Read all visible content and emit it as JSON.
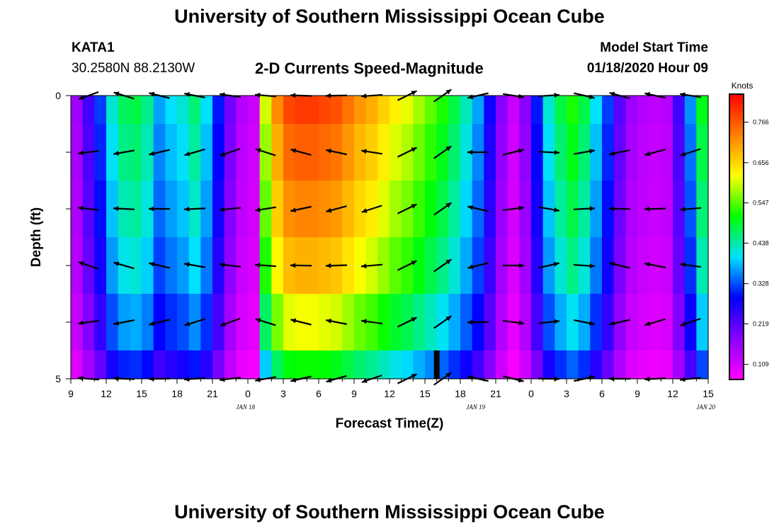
{
  "header": {
    "title": "University of Southern Mississippi Ocean Cube",
    "station": "KATA1",
    "coords": "30.2580N 88.2130W",
    "subtitle": "2-D Currents Speed-Magnitude",
    "model_start_label": "Model Start Time",
    "model_start_value": "01/18/2020 Hour 09"
  },
  "footer": {
    "title": "University of Southern Mississippi Ocean Cube"
  },
  "chart_data": {
    "type": "heatmap",
    "title": "2-D Currents Speed-Magnitude",
    "xlabel": "Forecast Time(Z)",
    "ylabel": "Depth (ft)",
    "x_ticks": [
      "9",
      "12",
      "15",
      "18",
      "21",
      "0",
      "3",
      "6",
      "9",
      "12",
      "15",
      "18",
      "21",
      "0",
      "3",
      "6",
      "9",
      "12",
      "15"
    ],
    "date_labels": [
      {
        "label": "JAN 18",
        "hour": 16
      },
      {
        "label": "JAN 19",
        "hour": 35.5
      },
      {
        "label": "JAN 20",
        "hour": 55
      }
    ],
    "x_range_hours": [
      0,
      54
    ],
    "y_ticks": [
      "0",
      "5"
    ],
    "y_range_ft": [
      0,
      5
    ],
    "depth_rows_ft": [
      0,
      1,
      2,
      3,
      4,
      5
    ],
    "colorbar": {
      "label": "Knots",
      "ticks": [
        "0.109",
        "0.219",
        "0.328",
        "0.438",
        "0.547",
        "0.656",
        "0.766"
      ],
      "range": [
        0.07,
        0.84
      ],
      "colors": [
        "#ff00ff",
        "#8a00ff",
        "#0000ff",
        "#00e0ff",
        "#00ff00",
        "#ffff00",
        "#ff8000",
        "#ff0000"
      ]
    },
    "speed_profile_knots": [
      0.16,
      0.24,
      0.32,
      0.42,
      0.47,
      0.48,
      0.45,
      0.37,
      0.4,
      0.42,
      0.46,
      0.4,
      0.3,
      0.2,
      0.14,
      0.12,
      0.6,
      0.72,
      0.78,
      0.79,
      0.79,
      0.78,
      0.77,
      0.74,
      0.71,
      0.69,
      0.66,
      0.63,
      0.61,
      0.58,
      0.55,
      0.52,
      0.48,
      0.43,
      0.37,
      0.28,
      0.18,
      0.12,
      0.18,
      0.3,
      0.42,
      0.48,
      0.52,
      0.48,
      0.4,
      0.32,
      0.22,
      0.16,
      0.14,
      0.13,
      0.14,
      0.24,
      0.36,
      0.5
    ],
    "depth_factor": [
      1.0,
      0.96,
      0.92,
      0.87,
      0.78,
      0.65
    ],
    "black_marker": {
      "hour": 31,
      "depth_top_ft": 4.5,
      "depth_bottom_ft": 5
    }
  }
}
